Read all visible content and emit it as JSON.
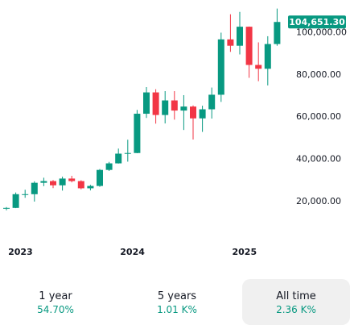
{
  "chart_data": {
    "type": "candlestick",
    "interval": "monthly",
    "ylim": [
      15000,
      112000
    ],
    "last_price_label": "104,651.30",
    "last_price": 104651.3,
    "yticks": [
      {
        "value": 20000,
        "label": "20,000.00"
      },
      {
        "value": 40000,
        "label": "40,000.00"
      },
      {
        "value": 60000,
        "label": "60,000.00"
      },
      {
        "value": 80000,
        "label": "80,000.00"
      },
      {
        "value": 100000,
        "label": "100,000.00"
      }
    ],
    "xticks": [
      {
        "index": 1.5,
        "label": "2023"
      },
      {
        "index": 13.5,
        "label": "2024"
      },
      {
        "index": 25.5,
        "label": "2025"
      }
    ],
    "candles": [
      {
        "open": 16500,
        "high": 17000,
        "low": 15500,
        "close": 16600
      },
      {
        "open": 16600,
        "high": 23900,
        "low": 16500,
        "close": 23100
      },
      {
        "open": 23100,
        "high": 25200,
        "low": 21400,
        "close": 23100
      },
      {
        "open": 23100,
        "high": 29200,
        "low": 19600,
        "close": 28500
      },
      {
        "open": 28500,
        "high": 30900,
        "low": 26900,
        "close": 29300
      },
      {
        "open": 29300,
        "high": 29800,
        "low": 26000,
        "close": 27300
      },
      {
        "open": 27300,
        "high": 31400,
        "low": 24800,
        "close": 30500
      },
      {
        "open": 30500,
        "high": 31800,
        "low": 28700,
        "close": 29300
      },
      {
        "open": 29300,
        "high": 29700,
        "low": 25400,
        "close": 25900
      },
      {
        "open": 25900,
        "high": 27500,
        "low": 24900,
        "close": 27000
      },
      {
        "open": 27000,
        "high": 35000,
        "low": 26600,
        "close": 34600
      },
      {
        "open": 34600,
        "high": 38400,
        "low": 34100,
        "close": 37700
      },
      {
        "open": 37700,
        "high": 44700,
        "low": 37600,
        "close": 42300
      },
      {
        "open": 42300,
        "high": 48900,
        "low": 38500,
        "close": 42600
      },
      {
        "open": 42600,
        "high": 63000,
        "low": 42500,
        "close": 61200
      },
      {
        "open": 61200,
        "high": 73800,
        "low": 59200,
        "close": 71300
      },
      {
        "open": 71300,
        "high": 72800,
        "low": 56500,
        "close": 60600
      },
      {
        "open": 60600,
        "high": 71900,
        "low": 56600,
        "close": 67500
      },
      {
        "open": 67500,
        "high": 71900,
        "low": 58400,
        "close": 62700
      },
      {
        "open": 62700,
        "high": 70000,
        "low": 53500,
        "close": 64600
      },
      {
        "open": 64600,
        "high": 65100,
        "low": 49000,
        "close": 59000
      },
      {
        "open": 59000,
        "high": 65000,
        "low": 52600,
        "close": 63300
      },
      {
        "open": 63300,
        "high": 73600,
        "low": 58900,
        "close": 70200
      },
      {
        "open": 70200,
        "high": 99600,
        "low": 66800,
        "close": 96400
      },
      {
        "open": 96400,
        "high": 108300,
        "low": 90500,
        "close": 93400
      },
      {
        "open": 93400,
        "high": 109400,
        "low": 89300,
        "close": 102400
      },
      {
        "open": 102400,
        "high": 102500,
        "low": 78200,
        "close": 84300
      },
      {
        "open": 84300,
        "high": 95000,
        "low": 76600,
        "close": 82500
      },
      {
        "open": 82500,
        "high": 97900,
        "low": 74600,
        "close": 94200
      },
      {
        "open": 94200,
        "high": 111000,
        "low": 93400,
        "close": 104651.3
      }
    ]
  },
  "ranges": [
    {
      "label": "1 year",
      "value": "54.70%",
      "active": false
    },
    {
      "label": "5 years",
      "value": "1.01 K%",
      "active": false
    },
    {
      "label": "All time",
      "value": "2.36 K%",
      "active": true
    }
  ],
  "colors": {
    "up": "#089981",
    "down": "#f23645",
    "badge": "#089981",
    "badge_text": "#ffffff",
    "positive_text": "#089981",
    "active_range_bg": "#f0f0f0"
  }
}
